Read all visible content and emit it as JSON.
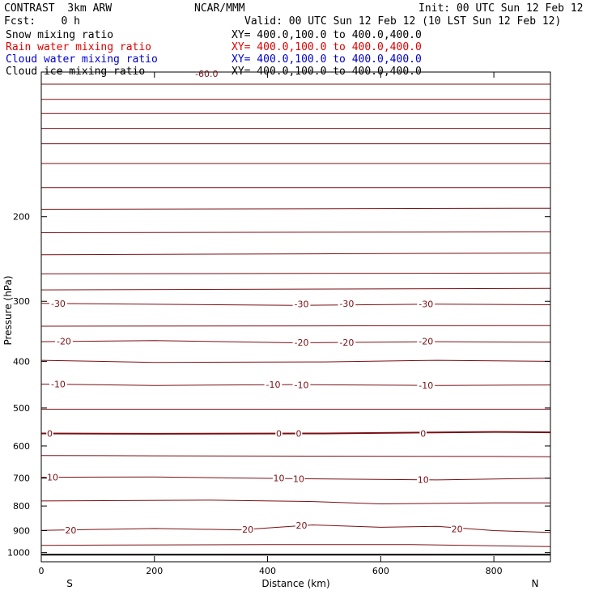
{
  "header": {
    "title_left": "CONTRAST  3km ARW",
    "title_center": "NCAR/MMM",
    "init": "Init: 00 UTC Sun 12 Feb 12",
    "fcst": "Fcst:    0 h",
    "valid": "Valid: 00 UTC Sun 12 Feb 12 (10 LST Sun 12 Feb 12)",
    "fields": [
      {
        "name": "Snow mixing ratio",
        "xy": "XY= 400.0,100.0 to 400.0,400.0",
        "color": "#000000"
      },
      {
        "name": "Rain water mixing ratio",
        "xy": "XY= 400.0,100.0 to 400.0,400.0",
        "color": "#e00000"
      },
      {
        "name": "Cloud water mixing ratio",
        "xy": "XY= 400.0,100.0 to 400.0,400.0",
        "color": "#0000d0"
      },
      {
        "name": "Cloud ice mixing ratio",
        "xy": "XY= 400.0,100.0 to 400.0,400.0",
        "color": "#000000"
      }
    ]
  },
  "colors": {
    "contour": "#7a0f14",
    "axis": "#000000"
  },
  "chart_data": {
    "type": "line",
    "xlabel": "Distance (km)",
    "ylabel": "Pressure (hPa)",
    "xlim": [
      0,
      900
    ],
    "ylim": [
      100,
      1045
    ],
    "y_scale": "log",
    "x_ticks": [
      0,
      200,
      400,
      600,
      800
    ],
    "y_ticks": [
      200,
      300,
      400,
      500,
      600,
      700,
      800,
      900,
      1000
    ],
    "x_end_labels": {
      "left": "S",
      "right": "N"
    },
    "top_label": "-60.0",
    "grid": false,
    "series": [
      {
        "name": "",
        "points": [
          [
            0,
            106
          ],
          [
            900,
            106
          ]
        ]
      },
      {
        "name": "",
        "points": [
          [
            0,
            114
          ],
          [
            900,
            114
          ]
        ]
      },
      {
        "name": "",
        "points": [
          [
            0,
            122
          ],
          [
            900,
            122
          ]
        ]
      },
      {
        "name": "",
        "points": [
          [
            0,
            131
          ],
          [
            900,
            131
          ]
        ]
      },
      {
        "name": "",
        "points": [
          [
            0,
            141
          ],
          [
            900,
            141
          ]
        ]
      },
      {
        "name": "",
        "points": [
          [
            0,
            155
          ],
          [
            900,
            155
          ]
        ]
      },
      {
        "name": "",
        "points": [
          [
            0,
            174
          ],
          [
            900,
            174
          ]
        ]
      },
      {
        "name": "",
        "points": [
          [
            0,
            193
          ],
          [
            900,
            192
          ]
        ]
      },
      {
        "name": "",
        "points": [
          [
            0,
            216
          ],
          [
            900,
            215
          ]
        ]
      },
      {
        "name": "",
        "points": [
          [
            0,
            240
          ],
          [
            900,
            238
          ]
        ]
      },
      {
        "name": "",
        "points": [
          [
            0,
            263
          ],
          [
            900,
            262
          ]
        ]
      },
      {
        "name": "",
        "points": [
          [
            0,
            284
          ],
          [
            900,
            282
          ]
        ]
      },
      {
        "name": "",
        "points": [
          [
            0,
            303
          ],
          [
            450,
            306
          ],
          [
            700,
            304
          ],
          [
            900,
            305
          ]
        ]
      },
      {
        "name": "",
        "points": [
          [
            0,
            338
          ],
          [
            900,
            337
          ]
        ]
      },
      {
        "name": "",
        "points": [
          [
            0,
            364
          ],
          [
            200,
            362
          ],
          [
            450,
            366
          ],
          [
            700,
            364
          ],
          [
            900,
            365
          ]
        ]
      },
      {
        "name": "",
        "points": [
          [
            0,
            398
          ],
          [
            200,
            402
          ],
          [
            500,
            401
          ],
          [
            700,
            398
          ],
          [
            900,
            400
          ]
        ]
      },
      {
        "name": "",
        "points": [
          [
            0,
            446
          ],
          [
            200,
            449
          ],
          [
            450,
            447
          ],
          [
            700,
            449
          ],
          [
            900,
            448
          ]
        ]
      },
      {
        "name": "",
        "points": [
          [
            0,
            503
          ],
          [
            900,
            503
          ]
        ]
      },
      {
        "name": "",
        "points": [
          [
            0,
            565
          ],
          [
            200,
            566
          ],
          [
            500,
            565
          ],
          [
            800,
            561
          ],
          [
            900,
            562
          ]
        ]
      },
      {
        "name": "",
        "points": [
          [
            0,
            628
          ],
          [
            200,
            629
          ],
          [
            500,
            630
          ],
          [
            800,
            631
          ],
          [
            900,
            632
          ]
        ]
      },
      {
        "name": "",
        "points": [
          [
            0,
            697
          ],
          [
            200,
            696
          ],
          [
            450,
            702
          ],
          [
            700,
            706
          ],
          [
            900,
            700
          ]
        ]
      },
      {
        "name": "",
        "points": [
          [
            0,
            781
          ],
          [
            300,
            778
          ],
          [
            480,
            783
          ],
          [
            600,
            792
          ],
          [
            800,
            788
          ],
          [
            900,
            788
          ]
        ]
      },
      {
        "name": "",
        "points": [
          [
            0,
            899
          ],
          [
            200,
            891
          ],
          [
            350,
            897
          ],
          [
            480,
            876
          ],
          [
            600,
            886
          ],
          [
            700,
            882
          ],
          [
            800,
            900
          ],
          [
            900,
            908
          ]
        ]
      },
      {
        "name": "",
        "points": [
          [
            0,
            966
          ],
          [
            400,
            962
          ],
          [
            650,
            962
          ],
          [
            900,
            972
          ]
        ]
      },
      {
        "name": "",
        "points": [
          [
            0,
            1010
          ],
          [
            900,
            1010
          ]
        ]
      }
    ],
    "contour_labels": [
      {
        "text": "-30",
        "x": 30,
        "y": 303
      },
      {
        "text": "-30",
        "x": 460,
        "y": 304
      },
      {
        "text": "-30",
        "x": 540,
        "y": 303
      },
      {
        "text": "-30",
        "x": 680,
        "y": 304
      },
      {
        "text": "-20",
        "x": 40,
        "y": 363
      },
      {
        "text": "-20",
        "x": 460,
        "y": 365
      },
      {
        "text": "-20",
        "x": 540,
        "y": 365
      },
      {
        "text": "-20",
        "x": 680,
        "y": 363
      },
      {
        "text": "-10",
        "x": 30,
        "y": 446
      },
      {
        "text": "-10",
        "x": 410,
        "y": 447
      },
      {
        "text": "-10",
        "x": 460,
        "y": 448
      },
      {
        "text": "-10",
        "x": 680,
        "y": 449
      },
      {
        "text": "0",
        "x": 15,
        "y": 565
      },
      {
        "text": "0",
        "x": 420,
        "y": 565
      },
      {
        "text": "0",
        "x": 455,
        "y": 565
      },
      {
        "text": "0",
        "x": 675,
        "y": 565
      },
      {
        "text": "10",
        "x": 20,
        "y": 697
      },
      {
        "text": "10",
        "x": 420,
        "y": 700
      },
      {
        "text": "10",
        "x": 455,
        "y": 702
      },
      {
        "text": "10",
        "x": 675,
        "y": 705
      },
      {
        "text": "20",
        "x": 52,
        "y": 899
      },
      {
        "text": "20",
        "x": 365,
        "y": 895
      },
      {
        "text": "20",
        "x": 460,
        "y": 878
      },
      {
        "text": "20",
        "x": 735,
        "y": 893
      }
    ]
  }
}
